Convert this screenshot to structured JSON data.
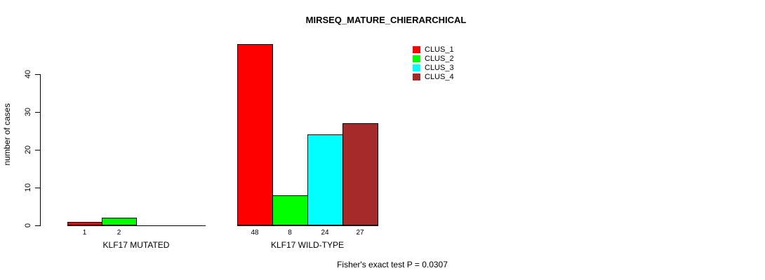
{
  "title": "MIRSEQ_MATURE_CHIERARCHICAL",
  "y_axis": {
    "label": "number of cases",
    "tick_labels": [
      "0",
      "10",
      "20",
      "30",
      "40"
    ]
  },
  "legend": {
    "items": [
      {
        "label": "CLUS_1",
        "color": "#FF0000"
      },
      {
        "label": "CLUS_2",
        "color": "#00FF00"
      },
      {
        "label": "CLUS_3",
        "color": "#00FFFF"
      },
      {
        "label": "CLUS_4",
        "color": "#A52A2A"
      }
    ]
  },
  "footer": "Fisher's exact test P = 0.0307",
  "chart_data": {
    "type": "bar",
    "title": "MIRSEQ_MATURE_CHIERARCHICAL",
    "xlabel": "",
    "ylabel": "number of cases",
    "ylim": [
      0,
      40
    ],
    "yticks": [
      0,
      10,
      20,
      30,
      40
    ],
    "grid": false,
    "legend_position": "top-right",
    "series": [
      "CLUS_1",
      "CLUS_2",
      "CLUS_3",
      "CLUS_4"
    ],
    "series_colors": [
      "#FF0000",
      "#00FF00",
      "#00FFFF",
      "#A52A2A"
    ],
    "groups": [
      {
        "label": "KLF17 MUTATED",
        "values": [
          1,
          2,
          0,
          0
        ],
        "value_labels": [
          "1",
          "2",
          "",
          ""
        ]
      },
      {
        "label": "KLF17 WILD-TYPE",
        "values": [
          48,
          8,
          24,
          27
        ],
        "value_labels": [
          "48",
          "8",
          "24",
          "27"
        ]
      }
    ],
    "annotation": "Fisher's exact test P = 0.0307"
  }
}
